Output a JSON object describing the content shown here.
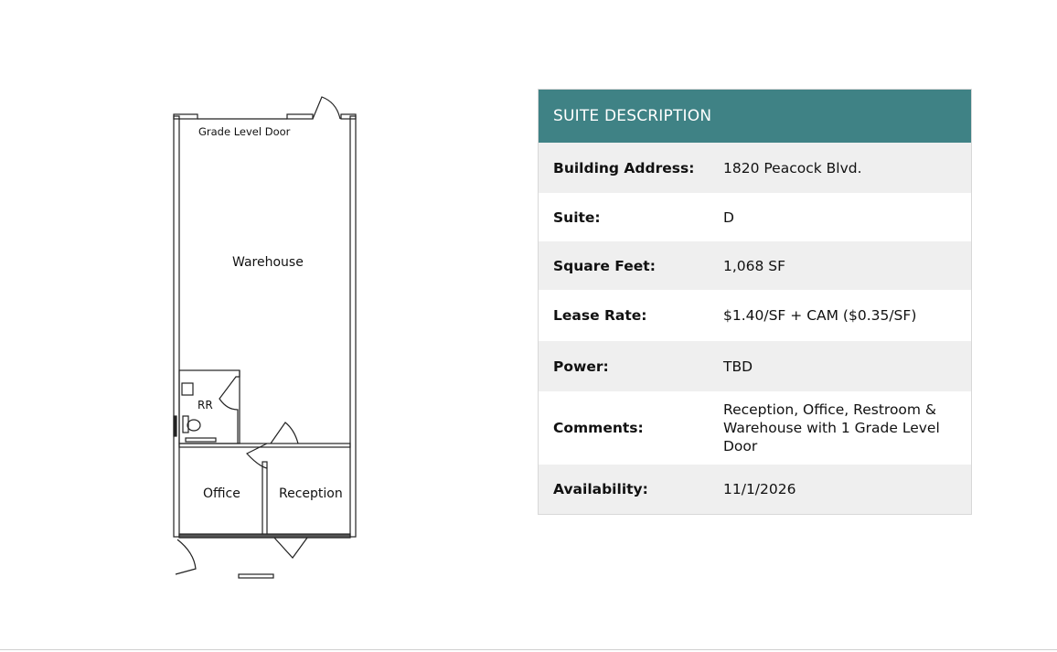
{
  "floorplan": {
    "labels": {
      "grade_door": "Grade Level Door",
      "warehouse": "Warehouse",
      "restroom": "RR",
      "office": "Office",
      "reception": "Reception"
    }
  },
  "suite": {
    "title": "SUITE DESCRIPTION",
    "header_color": "#3f8285",
    "rows": [
      {
        "label": "Building Address:",
        "value": "1820 Peacock Blvd."
      },
      {
        "label": "Suite:",
        "value": "D"
      },
      {
        "label": "Square Feet:",
        "value": "1,068 SF"
      },
      {
        "label": "Lease Rate:",
        "value": "$1.40/SF + CAM ($0.35/SF)"
      },
      {
        "label": "Power:",
        "value": "TBD"
      },
      {
        "label": "Comments:",
        "value": "Reception, Office, Restroom & Warehouse with 1 Grade Level Door"
      },
      {
        "label": "Availability:",
        "value": "11/1/2026"
      }
    ]
  }
}
